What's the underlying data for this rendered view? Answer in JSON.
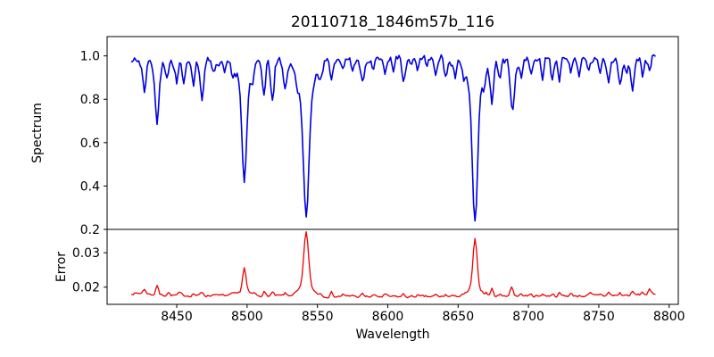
{
  "figure": {
    "title": "20110718_1846m57b_116",
    "background": "#ffffff"
  },
  "chart_data": [
    {
      "type": "line",
      "panel": "spectrum",
      "title": "20110718_1846m57b_116",
      "ylabel": "Spectrum",
      "line_color": "#0000e0",
      "xlim": [
        8400.5,
        8806.5
      ],
      "ylim": [
        0.2,
        1.089
      ],
      "yticks": [
        {
          "v": 0.2,
          "label": "0.2"
        },
        {
          "v": 0.4,
          "label": "0.4"
        },
        {
          "v": 0.6,
          "label": "0.6"
        },
        {
          "v": 0.8,
          "label": "0.8"
        },
        {
          "v": 1.0,
          "label": "1.0"
        }
      ],
      "x_start": 8418,
      "x_end": 8790,
      "x_step": 1,
      "continuum": 0.975,
      "noise_sigma": 0.011,
      "absorption_components": [
        [
          8427,
          0.143,
          1.2
        ],
        [
          8436,
          0.273,
          1.5
        ],
        [
          8443,
          0.06,
          0.9
        ],
        [
          8450,
          0.103,
          1.0
        ],
        [
          8455,
          0.088,
          0.9
        ],
        [
          8462,
          0.113,
          1.0
        ],
        [
          8468,
          0.158,
          1.3
        ],
        [
          8476,
          0.068,
          0.9
        ],
        [
          8484,
          0.048,
          0.9
        ],
        [
          8490,
          0.048,
          0.9
        ],
        [
          8498,
          0.44,
          1.6
        ],
        [
          8498,
          0.115,
          5.0
        ],
        [
          8504,
          0.058,
          0.9
        ],
        [
          8512,
          0.153,
          1.1
        ],
        [
          8518,
          0.188,
          1.2
        ],
        [
          8527,
          0.118,
          1.2
        ],
        [
          8536,
          0.058,
          0.9
        ],
        [
          8542,
          0.59,
          1.9
        ],
        [
          8542,
          0.148,
          6.0
        ],
        [
          8552,
          0.048,
          0.9
        ],
        [
          8560,
          0.083,
          1.0
        ],
        [
          8568,
          0.048,
          0.9
        ],
        [
          8575,
          0.043,
          0.9
        ],
        [
          8582,
          0.098,
          1.1
        ],
        [
          8590,
          0.048,
          0.9
        ],
        [
          8598,
          0.083,
          1.0
        ],
        [
          8604,
          0.048,
          0.9
        ],
        [
          8611,
          0.103,
          1.1
        ],
        [
          8617,
          0.048,
          0.8
        ],
        [
          8621,
          0.073,
          0.9
        ],
        [
          8628,
          0.043,
          0.8
        ],
        [
          8634,
          0.053,
          0.9
        ],
        [
          8641,
          0.095,
          1.0
        ],
        [
          8648,
          0.073,
          0.9
        ],
        [
          8654,
          0.048,
          0.8
        ],
        [
          8662,
          0.595,
          1.8
        ],
        [
          8662,
          0.143,
          5.5
        ],
        [
          8668,
          0.058,
          0.8
        ],
        [
          8674,
          0.193,
          1.1
        ],
        [
          8679.5,
          0.078,
          0.9
        ],
        [
          8688.6,
          0.248,
          1.5
        ],
        [
          8695,
          0.058,
          0.9
        ],
        [
          8702,
          0.053,
          0.9
        ],
        [
          8710,
          0.088,
          1.0
        ],
        [
          8717,
          0.093,
          1.0
        ],
        [
          8722,
          0.098,
          1.0
        ],
        [
          8730,
          0.063,
          0.9
        ],
        [
          8736,
          0.073,
          0.9
        ],
        [
          8743,
          0.048,
          0.8
        ],
        [
          8751,
          0.063,
          0.9
        ],
        [
          8757,
          0.105,
          1.0
        ],
        [
          8765,
          0.095,
          1.0
        ],
        [
          8770,
          0.068,
          0.9
        ],
        [
          8774,
          0.125,
          1.0
        ],
        [
          8781,
          0.078,
          0.9
        ],
        [
          8786,
          0.053,
          0.9
        ]
      ]
    },
    {
      "type": "line",
      "panel": "error",
      "ylabel": "Error",
      "xlabel": "Wavelength",
      "line_color": "#ee0000",
      "xlim": [
        8400.5,
        8806.5
      ],
      "xticks": [
        {
          "v": 8450,
          "label": "8450"
        },
        {
          "v": 8500,
          "label": "8500"
        },
        {
          "v": 8550,
          "label": "8550"
        },
        {
          "v": 8600,
          "label": "8600"
        },
        {
          "v": 8650,
          "label": "8650"
        },
        {
          "v": 8700,
          "label": "8700"
        },
        {
          "v": 8750,
          "label": "8750"
        },
        {
          "v": 8800,
          "label": "8800"
        }
      ],
      "ylim": [
        0.015,
        0.0368
      ],
      "yticks": [
        {
          "v": 0.02,
          "label": "0.02"
        },
        {
          "v": 0.03,
          "label": "0.03"
        }
      ],
      "x_start": 8418,
      "x_end": 8790,
      "x_step": 1,
      "baseline": 0.0176,
      "noise_sigma": 0.00022,
      "emission_components": [
        [
          8427,
          0.0012,
          1.3
        ],
        [
          8436,
          0.0029,
          0.9
        ],
        [
          8444,
          0.0009,
          0.9
        ],
        [
          8452,
          0.0007,
          0.9
        ],
        [
          8462,
          0.0006,
          0.9
        ],
        [
          8468,
          0.0009,
          1.0
        ],
        [
          8477,
          0.0006,
          1.0
        ],
        [
          8490,
          0.0005,
          1.0
        ],
        [
          8498,
          0.0068,
          1.2
        ],
        [
          8498,
          0.0013,
          3.5
        ],
        [
          8505,
          0.0006,
          0.9
        ],
        [
          8512,
          0.0013,
          0.9
        ],
        [
          8518,
          0.001,
          0.9
        ],
        [
          8527,
          0.0007,
          0.9
        ],
        [
          8542,
          0.0158,
          1.6
        ],
        [
          8542,
          0.003,
          5.0
        ],
        [
          8552,
          0.0006,
          0.8
        ],
        [
          8560,
          0.0012,
          0.9
        ],
        [
          8568,
          0.0006,
          0.8
        ],
        [
          8575,
          0.0005,
          0.8
        ],
        [
          8582,
          0.0007,
          0.9
        ],
        [
          8590,
          0.0005,
          0.8
        ],
        [
          8598,
          0.0007,
          0.9
        ],
        [
          8611,
          0.0007,
          0.9
        ],
        [
          8621,
          0.0006,
          0.8
        ],
        [
          8634,
          0.0005,
          0.8
        ],
        [
          8641,
          0.0006,
          0.8
        ],
        [
          8648,
          0.0005,
          0.8
        ],
        [
          8662,
          0.0138,
          1.4
        ],
        [
          8662,
          0.0028,
          4.5
        ],
        [
          8670,
          0.0006,
          0.8
        ],
        [
          8674,
          0.0022,
          0.9
        ],
        [
          8680,
          0.001,
          0.8
        ],
        [
          8688,
          0.0028,
          1.1
        ],
        [
          8695,
          0.0008,
          0.8
        ],
        [
          8702,
          0.0006,
          0.8
        ],
        [
          8710,
          0.0007,
          0.8
        ],
        [
          8717,
          0.0008,
          0.8
        ],
        [
          8722,
          0.0007,
          0.8
        ],
        [
          8730,
          0.0006,
          0.8
        ],
        [
          8744,
          0.0006,
          0.8
        ],
        [
          8751,
          0.0005,
          0.8
        ],
        [
          8757,
          0.0009,
          0.9
        ],
        [
          8765,
          0.0007,
          0.8
        ],
        [
          8774,
          0.0009,
          0.9
        ],
        [
          8781,
          0.0007,
          0.8
        ],
        [
          8786,
          0.0012,
          0.9
        ]
      ]
    }
  ]
}
